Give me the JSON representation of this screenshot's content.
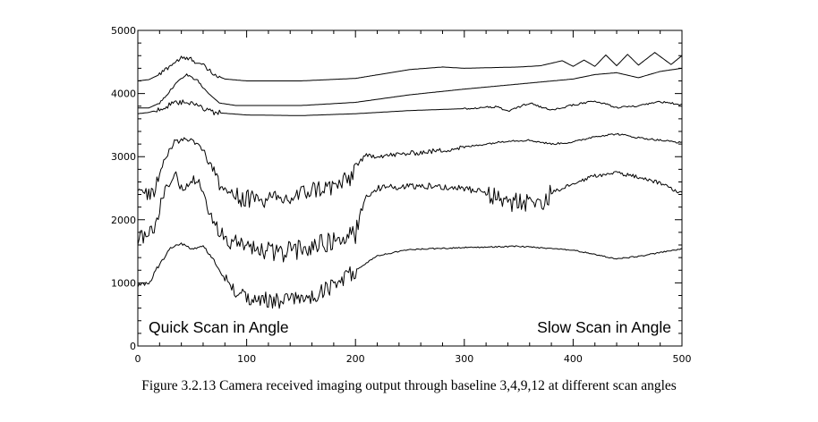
{
  "caption": "Figure 3.2.13 Camera received imaging output through baseline 3,4,9,12 at different scan angles",
  "chart_data": {
    "type": "line",
    "title": "",
    "xlabel": "",
    "ylabel": "",
    "xlim": [
      0,
      500
    ],
    "ylim": [
      0,
      5000
    ],
    "x_ticks": [
      "0",
      "100",
      "200",
      "300",
      "400",
      "500"
    ],
    "y_ticks": [
      "0",
      "1000",
      "2000",
      "3000",
      "4000",
      "5000"
    ],
    "grid": false,
    "annotations": [
      {
        "name": "quick-scan",
        "text": "Quick Scan in Angle"
      },
      {
        "name": "slow-scan",
        "text": "Slow Scan in Angle"
      }
    ],
    "series": [
      {
        "name": "trace-1",
        "color": "#000000",
        "points": [
          [
            0,
            4200
          ],
          [
            10,
            4220
          ],
          [
            20,
            4300
          ],
          [
            30,
            4450
          ],
          [
            40,
            4560
          ],
          [
            50,
            4540
          ],
          [
            60,
            4440
          ],
          [
            70,
            4300
          ],
          [
            80,
            4230
          ],
          [
            100,
            4200
          ],
          [
            150,
            4200
          ],
          [
            200,
            4240
          ],
          [
            250,
            4380
          ],
          [
            280,
            4420
          ],
          [
            300,
            4400
          ],
          [
            350,
            4420
          ],
          [
            370,
            4440
          ],
          [
            380,
            4480
          ],
          [
            390,
            4520
          ],
          [
            400,
            4430
          ],
          [
            410,
            4530
          ],
          [
            420,
            4430
          ],
          [
            430,
            4610
          ],
          [
            440,
            4440
          ],
          [
            450,
            4620
          ],
          [
            460,
            4450
          ],
          [
            475,
            4650
          ],
          [
            490,
            4460
          ],
          [
            500,
            4600
          ]
        ],
        "noise": [
          [
            20,
            75,
            40
          ]
        ]
      },
      {
        "name": "trace-2",
        "color": "#000000",
        "points": [
          [
            0,
            3770
          ],
          [
            10,
            3770
          ],
          [
            20,
            3850
          ],
          [
            30,
            4050
          ],
          [
            40,
            4250
          ],
          [
            45,
            4300
          ],
          [
            55,
            4200
          ],
          [
            65,
            4000
          ],
          [
            75,
            3850
          ],
          [
            90,
            3810
          ],
          [
            150,
            3810
          ],
          [
            200,
            3860
          ],
          [
            250,
            3980
          ],
          [
            300,
            4070
          ],
          [
            350,
            4150
          ],
          [
            400,
            4230
          ],
          [
            420,
            4300
          ],
          [
            440,
            4330
          ],
          [
            460,
            4250
          ],
          [
            480,
            4350
          ],
          [
            500,
            4400
          ]
        ],
        "noise": [
          [
            20,
            60,
            18
          ]
        ]
      },
      {
        "name": "trace-3",
        "color": "#000000",
        "points": [
          [
            0,
            3680
          ],
          [
            10,
            3700
          ],
          [
            20,
            3750
          ],
          [
            30,
            3820
          ],
          [
            40,
            3860
          ],
          [
            50,
            3830
          ],
          [
            60,
            3770
          ],
          [
            70,
            3700
          ],
          [
            100,
            3660
          ],
          [
            150,
            3650
          ],
          [
            200,
            3680
          ],
          [
            250,
            3730
          ],
          [
            300,
            3760
          ],
          [
            330,
            3790
          ],
          [
            340,
            3720
          ],
          [
            360,
            3850
          ],
          [
            380,
            3730
          ],
          [
            400,
            3820
          ],
          [
            420,
            3880
          ],
          [
            440,
            3780
          ],
          [
            460,
            3800
          ],
          [
            480,
            3870
          ],
          [
            500,
            3820
          ]
        ],
        "noise": [
          [
            15,
            75,
            45
          ],
          [
            300,
            500,
            15
          ]
        ]
      },
      {
        "name": "trace-4",
        "color": "#000000",
        "points": [
          [
            0,
            2400
          ],
          [
            15,
            2450
          ],
          [
            25,
            3000
          ],
          [
            35,
            3250
          ],
          [
            45,
            3280
          ],
          [
            55,
            3220
          ],
          [
            62,
            3050
          ],
          [
            68,
            2850
          ],
          [
            75,
            2550
          ],
          [
            90,
            2360
          ],
          [
            120,
            2300
          ],
          [
            140,
            2330
          ],
          [
            160,
            2480
          ],
          [
            180,
            2520
          ],
          [
            195,
            2640
          ],
          [
            200,
            2860
          ],
          [
            210,
            3010
          ],
          [
            230,
            3020
          ],
          [
            250,
            3050
          ],
          [
            280,
            3100
          ],
          [
            300,
            3150
          ],
          [
            340,
            3250
          ],
          [
            360,
            3260
          ],
          [
            380,
            3200
          ],
          [
            400,
            3230
          ],
          [
            420,
            3320
          ],
          [
            440,
            3360
          ],
          [
            460,
            3300
          ],
          [
            500,
            3220
          ]
        ],
        "noise": [
          [
            0,
            22,
            120
          ],
          [
            22,
            60,
            50
          ],
          [
            60,
            90,
            90
          ],
          [
            90,
            200,
            150
          ],
          [
            200,
            300,
            40
          ],
          [
            300,
            500,
            15
          ]
        ]
      },
      {
        "name": "trace-5",
        "color": "#000000",
        "points": [
          [
            0,
            1720
          ],
          [
            15,
            1800
          ],
          [
            22,
            2350
          ],
          [
            28,
            2550
          ],
          [
            35,
            2700
          ],
          [
            42,
            2450
          ],
          [
            50,
            2650
          ],
          [
            58,
            2550
          ],
          [
            62,
            2380
          ],
          [
            68,
            1950
          ],
          [
            75,
            1750
          ],
          [
            90,
            1620
          ],
          [
            110,
            1530
          ],
          [
            130,
            1470
          ],
          [
            160,
            1580
          ],
          [
            180,
            1680
          ],
          [
            200,
            1770
          ],
          [
            205,
            2100
          ],
          [
            210,
            2380
          ],
          [
            220,
            2500
          ],
          [
            260,
            2540
          ],
          [
            300,
            2500
          ],
          [
            320,
            2420
          ],
          [
            340,
            2280
          ],
          [
            360,
            2280
          ],
          [
            375,
            2300
          ],
          [
            380,
            2430
          ],
          [
            400,
            2560
          ],
          [
            420,
            2700
          ],
          [
            440,
            2740
          ],
          [
            460,
            2680
          ],
          [
            480,
            2580
          ],
          [
            500,
            2420
          ]
        ],
        "noise": [
          [
            0,
            22,
            120
          ],
          [
            22,
            65,
            80
          ],
          [
            65,
            205,
            160
          ],
          [
            205,
            320,
            50
          ],
          [
            320,
            380,
            150
          ],
          [
            380,
            500,
            30
          ]
        ]
      },
      {
        "name": "trace-6",
        "color": "#000000",
        "points": [
          [
            0,
            950
          ],
          [
            10,
            980
          ],
          [
            20,
            1300
          ],
          [
            30,
            1550
          ],
          [
            40,
            1630
          ],
          [
            50,
            1520
          ],
          [
            60,
            1580
          ],
          [
            70,
            1350
          ],
          [
            80,
            1050
          ],
          [
            90,
            830
          ],
          [
            120,
            720
          ],
          [
            140,
            720
          ],
          [
            160,
            780
          ],
          [
            180,
            950
          ],
          [
            200,
            1200
          ],
          [
            220,
            1430
          ],
          [
            250,
            1530
          ],
          [
            300,
            1560
          ],
          [
            350,
            1580
          ],
          [
            400,
            1520
          ],
          [
            440,
            1380
          ],
          [
            460,
            1420
          ],
          [
            500,
            1540
          ]
        ],
        "noise": [
          [
            0,
            20,
            40
          ],
          [
            20,
            80,
            25
          ],
          [
            80,
            200,
            130
          ],
          [
            200,
            500,
            10
          ]
        ]
      }
    ]
  }
}
